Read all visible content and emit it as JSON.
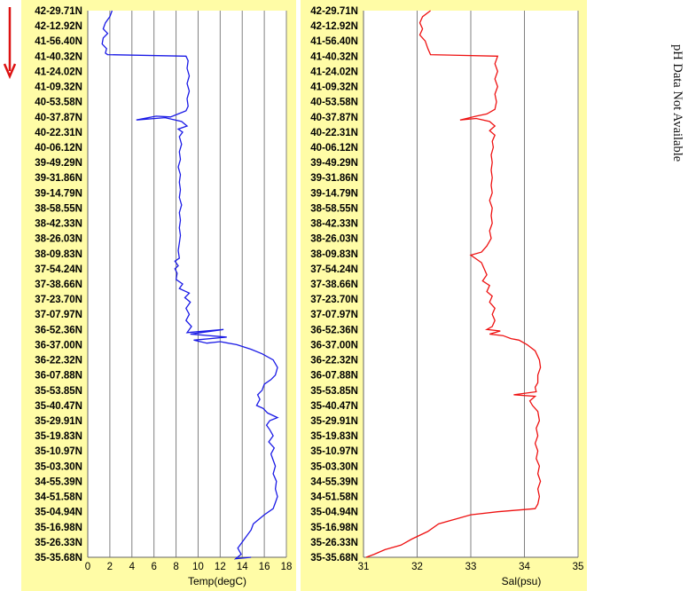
{
  "colors": {
    "panel_bg": "#fffca6",
    "grid": "#808080",
    "temp_line": "#1a1ae6",
    "sal_line": "#ee1111",
    "direction_arrow": "#dd1111"
  },
  "direction_icon": "down-arrow-icon",
  "ph_note": "pH Data Not Available",
  "latitudes": [
    "42-29.71N",
    "42-12.92N",
    "41-56.40N",
    "41-40.32N",
    "41-24.02N",
    "41-09.32N",
    "40-53.58N",
    "40-37.87N",
    "40-22.31N",
    "40-06.12N",
    "39-49.29N",
    "39-31.86N",
    "39-14.79N",
    "38-58.55N",
    "38-42.33N",
    "38-26.03N",
    "38-09.83N",
    "37-54.24N",
    "37-38.66N",
    "37-23.70N",
    "37-07.97N",
    "36-52.36N",
    "36-37.00N",
    "36-22.32N",
    "36-07.88N",
    "35-53.85N",
    "35-40.47N",
    "35-29.91N",
    "35-19.83N",
    "35-10.97N",
    "35-03.30N",
    "34-55.39N",
    "34-51.58N",
    "35-04.94N",
    "35-16.98N",
    "35-26.33N",
    "35-35.68N"
  ],
  "chart_data": [
    {
      "type": "line",
      "xlabel": "Temp(degC)",
      "xlim": [
        0,
        18
      ],
      "xticks": [
        "0",
        "2",
        "4",
        "6",
        "8",
        "10",
        "12",
        "14",
        "16",
        "18"
      ],
      "grid": "vertical",
      "y_axis": "latitude station labels (top to bottom as listed)",
      "series": [
        {
          "points": [
            [
              2.2,
              0
            ],
            [
              2.0,
              0.4
            ],
            [
              1.6,
              0.8
            ],
            [
              1.4,
              1.2
            ],
            [
              1.8,
              1.5
            ],
            [
              1.4,
              1.8
            ],
            [
              1.3,
              2.2
            ],
            [
              1.7,
              2.5
            ],
            [
              1.6,
              2.8
            ],
            [
              1.8,
              2.9
            ],
            [
              8.9,
              3.0
            ],
            [
              9.1,
              3.3
            ],
            [
              9.0,
              3.8
            ],
            [
              9.2,
              4.3
            ],
            [
              9.0,
              4.8
            ],
            [
              9.2,
              5.3
            ],
            [
              9.0,
              5.8
            ],
            [
              9.1,
              6.3
            ],
            [
              8.9,
              6.6
            ],
            [
              8.2,
              6.8
            ],
            [
              7.5,
              7.0
            ],
            [
              6.2,
              6.95
            ],
            [
              4.4,
              7.2
            ],
            [
              7.0,
              7.05
            ],
            [
              8.5,
              7.3
            ],
            [
              9.0,
              7.6
            ],
            [
              8.2,
              7.8
            ],
            [
              8.6,
              8.0
            ],
            [
              8.3,
              8.3
            ],
            [
              8.5,
              8.8
            ],
            [
              8.3,
              9.3
            ],
            [
              8.4,
              9.8
            ],
            [
              8.2,
              10.3
            ],
            [
              8.4,
              10.8
            ],
            [
              8.3,
              11.3
            ],
            [
              8.4,
              11.8
            ],
            [
              8.3,
              12.3
            ],
            [
              8.5,
              12.8
            ],
            [
              8.3,
              13.3
            ],
            [
              8.4,
              13.8
            ],
            [
              8.3,
              14.3
            ],
            [
              8.4,
              14.8
            ],
            [
              8.3,
              15.3
            ],
            [
              8.2,
              15.8
            ],
            [
              8.3,
              16.3
            ],
            [
              7.9,
              16.5
            ],
            [
              8.2,
              16.8
            ],
            [
              7.9,
              17.0
            ],
            [
              8.1,
              17.3
            ],
            [
              8.0,
              17.7
            ],
            [
              8.6,
              18.0
            ],
            [
              8.3,
              18.3
            ],
            [
              9.2,
              18.6
            ],
            [
              8.8,
              18.9
            ],
            [
              9.3,
              19.2
            ],
            [
              8.9,
              19.6
            ],
            [
              9.2,
              20.0
            ],
            [
              8.9,
              20.4
            ],
            [
              9.4,
              20.8
            ],
            [
              9.0,
              21.2
            ],
            [
              12.3,
              21.0
            ],
            [
              9.3,
              21.3
            ],
            [
              12.6,
              21.5
            ],
            [
              9.6,
              21.7
            ],
            [
              10.8,
              21.9
            ],
            [
              12.0,
              21.8
            ],
            [
              13.5,
              22.0
            ],
            [
              14.8,
              22.3
            ],
            [
              15.8,
              22.6
            ],
            [
              16.8,
              23.0
            ],
            [
              17.2,
              23.5
            ],
            [
              17.0,
              24.0
            ],
            [
              16.6,
              24.3
            ],
            [
              16.0,
              24.6
            ],
            [
              15.8,
              25.0
            ],
            [
              15.4,
              25.3
            ],
            [
              15.6,
              25.6
            ],
            [
              15.3,
              26.0
            ],
            [
              15.9,
              26.2
            ],
            [
              16.3,
              26.5
            ],
            [
              17.2,
              26.8
            ],
            [
              16.5,
              27.0
            ],
            [
              16.2,
              27.3
            ],
            [
              16.5,
              27.6
            ],
            [
              16.8,
              28.0
            ],
            [
              16.4,
              28.4
            ],
            [
              16.9,
              28.8
            ],
            [
              16.6,
              29.2
            ],
            [
              16.8,
              29.6
            ],
            [
              17.0,
              30.0
            ],
            [
              16.8,
              30.5
            ],
            [
              17.1,
              31.0
            ],
            [
              17.0,
              31.5
            ],
            [
              17.2,
              32.0
            ],
            [
              17.0,
              32.4
            ],
            [
              16.8,
              32.8
            ],
            [
              16.0,
              33.2
            ],
            [
              15.5,
              33.5
            ],
            [
              15.0,
              33.8
            ],
            [
              14.8,
              34.2
            ],
            [
              14.4,
              34.6
            ],
            [
              14.0,
              35.0
            ],
            [
              13.6,
              35.4
            ],
            [
              13.9,
              35.8
            ],
            [
              13.4,
              36.1
            ],
            [
              14.8,
              36.0
            ]
          ]
        }
      ]
    },
    {
      "type": "line",
      "xlabel": "Sal(psu)",
      "xlim": [
        31,
        35
      ],
      "xticks": [
        "31",
        "32",
        "33",
        "34",
        "35"
      ],
      "grid": "vertical",
      "y_axis": "latitude station labels (top to bottom as listed)",
      "series": [
        {
          "points": [
            [
              32.25,
              0
            ],
            [
              32.1,
              0.4
            ],
            [
              32.05,
              0.8
            ],
            [
              32.1,
              1.2
            ],
            [
              32.05,
              1.6
            ],
            [
              32.15,
              2.0
            ],
            [
              32.2,
              2.5
            ],
            [
              32.25,
              2.9
            ],
            [
              33.5,
              3.0
            ],
            [
              33.45,
              3.5
            ],
            [
              33.5,
              4.0
            ],
            [
              33.45,
              4.5
            ],
            [
              33.5,
              5.0
            ],
            [
              33.45,
              5.5
            ],
            [
              33.48,
              6.0
            ],
            [
              33.45,
              6.5
            ],
            [
              33.3,
              6.8
            ],
            [
              33.1,
              6.95
            ],
            [
              32.8,
              7.2
            ],
            [
              33.1,
              7.1
            ],
            [
              33.35,
              7.3
            ],
            [
              33.45,
              7.6
            ],
            [
              33.35,
              7.9
            ],
            [
              33.45,
              8.2
            ],
            [
              33.4,
              8.6
            ],
            [
              33.42,
              9.0
            ],
            [
              33.38,
              9.5
            ],
            [
              33.4,
              10.0
            ],
            [
              33.38,
              10.5
            ],
            [
              33.4,
              11.0
            ],
            [
              33.38,
              11.5
            ],
            [
              33.4,
              12.0
            ],
            [
              33.35,
              12.5
            ],
            [
              33.4,
              13.0
            ],
            [
              33.38,
              13.5
            ],
            [
              33.4,
              14.0
            ],
            [
              33.35,
              14.5
            ],
            [
              33.38,
              15.0
            ],
            [
              33.3,
              15.5
            ],
            [
              33.2,
              15.9
            ],
            [
              33.0,
              16.1
            ],
            [
              33.2,
              16.6
            ],
            [
              33.25,
              17.0
            ],
            [
              33.3,
              17.4
            ],
            [
              33.22,
              17.8
            ],
            [
              33.35,
              18.1
            ],
            [
              33.3,
              18.5
            ],
            [
              33.4,
              18.8
            ],
            [
              33.35,
              19.2
            ],
            [
              33.45,
              19.6
            ],
            [
              33.4,
              20.0
            ],
            [
              33.45,
              20.4
            ],
            [
              33.4,
              20.8
            ],
            [
              33.3,
              21.0
            ],
            [
              33.55,
              21.1
            ],
            [
              33.35,
              21.3
            ],
            [
              33.6,
              21.4
            ],
            [
              33.75,
              21.6
            ],
            [
              33.9,
              21.7
            ],
            [
              34.05,
              22.0
            ],
            [
              34.2,
              22.4
            ],
            [
              34.28,
              23.0
            ],
            [
              34.3,
              23.5
            ],
            [
              34.25,
              24.0
            ],
            [
              34.25,
              24.5
            ],
            [
              34.2,
              24.8
            ],
            [
              34.22,
              25.1
            ],
            [
              33.8,
              25.3
            ],
            [
              34.2,
              25.4
            ],
            [
              34.1,
              25.7
            ],
            [
              34.15,
              26.0
            ],
            [
              34.25,
              26.4
            ],
            [
              34.28,
              27.0
            ],
            [
              34.22,
              27.5
            ],
            [
              34.25,
              28.0
            ],
            [
              34.2,
              28.5
            ],
            [
              34.25,
              29.0
            ],
            [
              34.22,
              29.5
            ],
            [
              34.28,
              30.0
            ],
            [
              34.25,
              30.5
            ],
            [
              34.3,
              31.0
            ],
            [
              34.25,
              31.5
            ],
            [
              34.28,
              32.0
            ],
            [
              34.25,
              32.5
            ],
            [
              34.2,
              32.8
            ],
            [
              33.5,
              33.0
            ],
            [
              33.0,
              33.2
            ],
            [
              32.7,
              33.5
            ],
            [
              32.4,
              33.8
            ],
            [
              32.2,
              34.3
            ],
            [
              31.9,
              34.8
            ],
            [
              31.7,
              35.2
            ],
            [
              31.4,
              35.5
            ],
            [
              31.2,
              35.8
            ],
            [
              31.05,
              36.0
            ]
          ]
        }
      ]
    }
  ]
}
